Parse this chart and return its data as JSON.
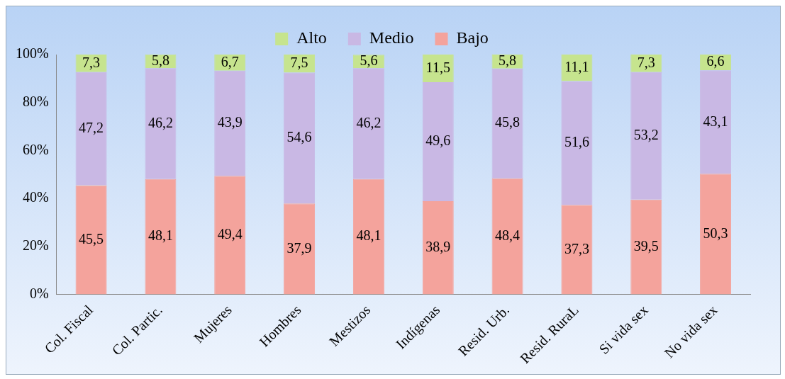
{
  "chart_data": {
    "type": "bar",
    "stacked": true,
    "categories": [
      "Col. Fiscal",
      "Col. Partic.",
      "Mujeres",
      "Hombres",
      "Mestizos",
      "Indígenas",
      "Resid. Urb.",
      "Resid. RuraL",
      "Si vida sex",
      "No vida sex"
    ],
    "series": [
      {
        "name": "Bajo",
        "color": "#f4a39c",
        "values": [
          45.5,
          48.1,
          49.4,
          37.9,
          48.1,
          38.9,
          48.4,
          37.3,
          39.5,
          50.3
        ],
        "value_labels": [
          "45,5",
          "48,1",
          "49,4",
          "37,9",
          "48,1",
          "38,9",
          "48,4",
          "37,3",
          "39,5",
          "50,3"
        ]
      },
      {
        "name": "Medio",
        "color": "#c9b8e4",
        "values": [
          47.2,
          46.2,
          43.9,
          54.6,
          46.2,
          49.6,
          45.8,
          51.6,
          53.2,
          43.1
        ],
        "value_labels": [
          "47,2",
          "46,2",
          "43,9",
          "54,6",
          "46,2",
          "49,6",
          "45,8",
          "51,6",
          "53,2",
          "43,1"
        ]
      },
      {
        "name": "Alto",
        "color": "#c6e48e",
        "values": [
          7.3,
          5.8,
          6.7,
          7.5,
          5.6,
          11.5,
          5.8,
          11.1,
          7.3,
          6.6
        ],
        "value_labels": [
          "7,3",
          "5,8",
          "6,7",
          "7,5",
          "5,6",
          "11,5",
          "5,8",
          "11,1",
          "7,3",
          "6,6"
        ]
      }
    ],
    "ylim": [
      0,
      100
    ],
    "yticks": [
      {
        "value": 0,
        "label": "0%"
      },
      {
        "value": 20,
        "label": "20%"
      },
      {
        "value": 40,
        "label": "40%"
      },
      {
        "value": 60,
        "label": "60%"
      },
      {
        "value": 80,
        "label": "80%"
      },
      {
        "value": 100,
        "label": "100%"
      }
    ],
    "grid": false,
    "legend": "top"
  }
}
